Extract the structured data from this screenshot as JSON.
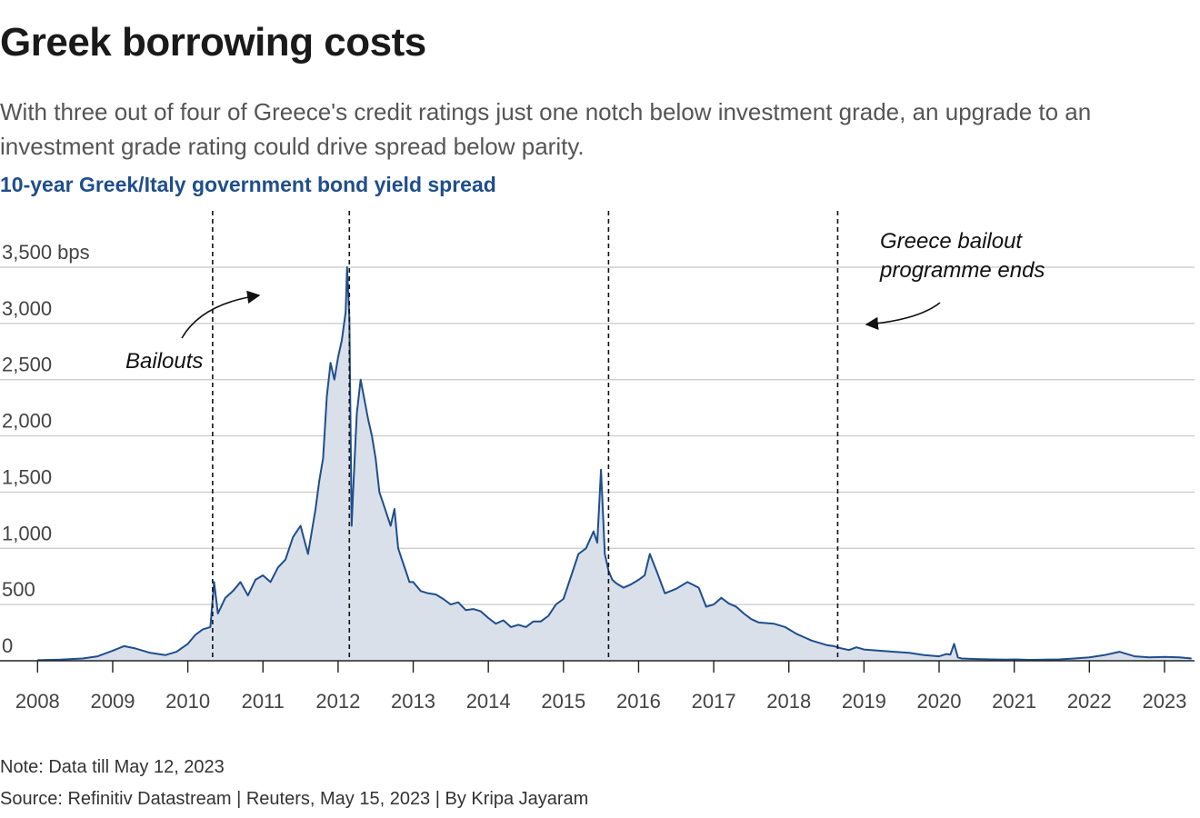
{
  "header": {
    "title": "Greek borrowing costs",
    "subtitle": "With three out of four of Greece's credit ratings just one notch below investment grade, an upgrade to an investment grade rating could drive spread below parity.",
    "chart_title": "10-year Greek/Italy government bond yield spread"
  },
  "footer": {
    "note": "Note: Data till May 12, 2023",
    "source": "Source: Refinitiv Datastream | Reuters, May 15, 2023 | By Kripa Jayaram"
  },
  "colors": {
    "line": "#1f4e8c",
    "area": "#d9e0ea",
    "grid": "#c8c8c8",
    "title_blue": "#1f4e8c"
  },
  "chart_data": {
    "type": "area",
    "title": "10-year Greek/Italy government bond yield spread",
    "xlabel": "",
    "ylabel": "bps",
    "xlim": [
      2007.5,
      2023.4
    ],
    "ylim": [
      0,
      3500
    ],
    "grid": true,
    "x_ticks": [
      2008,
      2009,
      2010,
      2011,
      2012,
      2013,
      2014,
      2015,
      2016,
      2017,
      2018,
      2019,
      2020,
      2021,
      2022,
      2023
    ],
    "x_tick_labels": [
      "2008",
      "2009",
      "2010",
      "2011",
      "2012",
      "2013",
      "2014",
      "2015",
      "2016",
      "2017",
      "2018",
      "2019",
      "2020",
      "2021",
      "2022",
      "2023"
    ],
    "y_ticks": [
      0,
      500,
      1000,
      1500,
      2000,
      2500,
      3000,
      3500
    ],
    "y_tick_labels": [
      "0",
      "500",
      "1,000",
      "1,500",
      "2,000",
      "2,500",
      "3,000",
      "3,500 bps"
    ],
    "series": [
      {
        "name": "10-year Greek/Italy government bond yield spread",
        "x": [
          2008.0,
          2008.3,
          2008.6,
          2008.8,
          2009.0,
          2009.15,
          2009.3,
          2009.5,
          2009.7,
          2009.85,
          2010.0,
          2010.1,
          2010.2,
          2010.3,
          2010.35,
          2010.4,
          2010.5,
          2010.6,
          2010.7,
          2010.8,
          2010.9,
          2011.0,
          2011.1,
          2011.2,
          2011.3,
          2011.4,
          2011.5,
          2011.6,
          2011.7,
          2011.75,
          2011.8,
          2011.85,
          2011.9,
          2011.95,
          2012.0,
          2012.05,
          2012.1,
          2012.12,
          2012.15,
          2012.18,
          2012.2,
          2012.25,
          2012.3,
          2012.4,
          2012.45,
          2012.5,
          2012.55,
          2012.6,
          2012.65,
          2012.7,
          2012.75,
          2012.8,
          2012.85,
          2012.9,
          2012.95,
          2013.0,
          2013.1,
          2013.2,
          2013.3,
          2013.4,
          2013.5,
          2013.6,
          2013.7,
          2013.8,
          2013.9,
          2014.0,
          2014.1,
          2014.2,
          2014.3,
          2014.4,
          2014.5,
          2014.6,
          2014.7,
          2014.8,
          2014.9,
          2015.0,
          2015.1,
          2015.2,
          2015.3,
          2015.4,
          2015.45,
          2015.5,
          2015.55,
          2015.6,
          2015.65,
          2015.7,
          2015.8,
          2015.9,
          2016.0,
          2016.08,
          2016.15,
          2016.25,
          2016.35,
          2016.5,
          2016.65,
          2016.8,
          2016.9,
          2017.0,
          2017.1,
          2017.2,
          2017.3,
          2017.4,
          2017.5,
          2017.6,
          2017.8,
          2017.95,
          2018.0,
          2018.1,
          2018.2,
          2018.3,
          2018.4,
          2018.5,
          2018.6,
          2018.7,
          2018.8,
          2018.9,
          2019.0,
          2019.2,
          2019.4,
          2019.6,
          2019.8,
          2020.0,
          2020.1,
          2020.15,
          2020.2,
          2020.25,
          2020.3,
          2020.5,
          2020.7,
          2020.9,
          2021.0,
          2021.2,
          2021.4,
          2021.6,
          2021.8,
          2022.0,
          2022.2,
          2022.4,
          2022.5,
          2022.6,
          2022.8,
          2023.0,
          2023.2,
          2023.36
        ],
        "values": [
          5,
          10,
          20,
          40,
          90,
          130,
          110,
          70,
          50,
          80,
          150,
          230,
          280,
          300,
          700,
          420,
          560,
          620,
          700,
          580,
          720,
          760,
          700,
          830,
          900,
          1100,
          1200,
          950,
          1350,
          1600,
          1800,
          2350,
          2650,
          2500,
          2700,
          2850,
          3100,
          3500,
          3050,
          1200,
          1500,
          2200,
          2500,
          2150,
          2000,
          1800,
          1500,
          1400,
          1300,
          1200,
          1350,
          1000,
          900,
          800,
          700,
          700,
          620,
          600,
          590,
          550,
          500,
          520,
          450,
          460,
          440,
          380,
          330,
          360,
          300,
          320,
          300,
          350,
          350,
          400,
          500,
          550,
          750,
          950,
          1000,
          1150,
          1050,
          1700,
          950,
          800,
          720,
          690,
          650,
          680,
          720,
          760,
          950,
          780,
          600,
          640,
          700,
          650,
          480,
          500,
          560,
          510,
          480,
          420,
          370,
          340,
          330,
          300,
          280,
          240,
          210,
          180,
          160,
          140,
          130,
          110,
          95,
          120,
          100,
          90,
          80,
          70,
          50,
          40,
          60,
          55,
          150,
          30,
          20,
          15,
          12,
          10,
          12,
          8,
          10,
          12,
          20,
          30,
          50,
          80,
          60,
          40,
          30,
          35,
          30,
          20
        ]
      }
    ],
    "annotations": [
      {
        "label": "Bailouts",
        "x": 2010.33
      },
      {
        "label": "Bailouts",
        "x": 2012.15
      },
      {
        "label": "Bailouts",
        "x": 2015.6
      },
      {
        "label": "Greece bailout programme ends",
        "x": 2018.65
      }
    ],
    "annotation_text": {
      "bailouts": "Bailouts",
      "ends_line1": "Greece bailout",
      "ends_line2": "programme ends"
    }
  }
}
